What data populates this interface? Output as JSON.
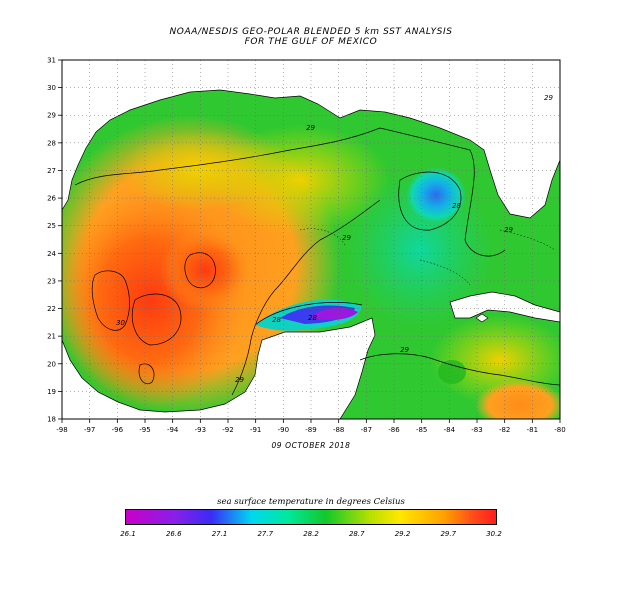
{
  "title": {
    "line1": "NOAA/NESDIS GEO-POLAR BLENDED 5 km SST ANALYSIS",
    "line2": "FOR THE GULF OF MEXICO"
  },
  "map": {
    "lon_range": [
      -98,
      -80
    ],
    "lat_range": [
      18,
      31
    ],
    "lon_ticks": [
      "-98",
      "-97",
      "-96",
      "-95",
      "-94",
      "-93",
      "-92",
      "-91",
      "-90",
      "-89",
      "-88",
      "-87",
      "-86",
      "-85",
      "-84",
      "-83",
      "-82",
      "-81",
      "-80"
    ],
    "lat_ticks": [
      "31",
      "30",
      "29",
      "28",
      "27",
      "26",
      "25",
      "24",
      "23",
      "22",
      "21",
      "20",
      "19",
      "18"
    ],
    "contour_labels": [
      "29",
      "30",
      "28",
      "29",
      "28",
      "29",
      "29",
      "29",
      "28",
      "29"
    ],
    "land_color": "#ffffff",
    "grid": true
  },
  "date": "09 OCTOBER 2018",
  "colorbar": {
    "title": "sea surface temperature in degrees Celsius",
    "ticks": [
      "26.1",
      "26.6",
      "27.1",
      "27.7",
      "28.2",
      "28.7",
      "29.2",
      "29.7",
      "30.2"
    ],
    "colors": [
      "#c800c8",
      "#3a2cf5",
      "#00d8f0",
      "#12c82a",
      "#ffe800",
      "#ffa000",
      "#ff1e1e"
    ]
  }
}
